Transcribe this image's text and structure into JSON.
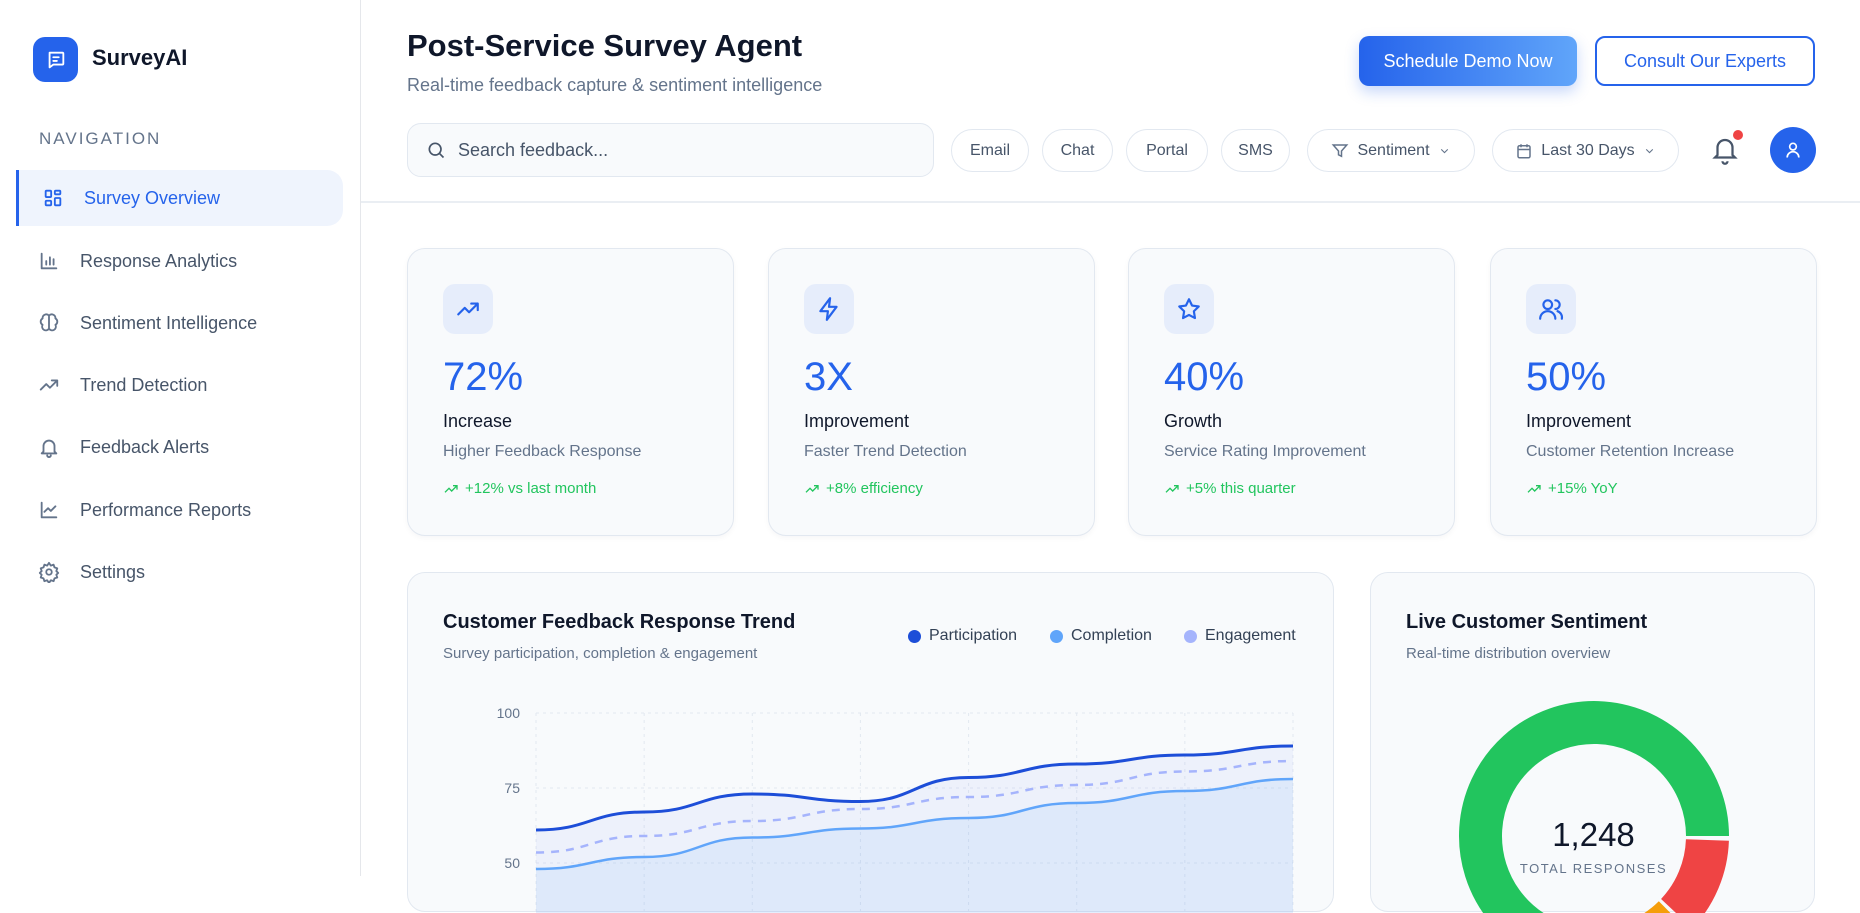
{
  "brand": {
    "name": "SurveyAI"
  },
  "sidebar": {
    "section_label": "NAVIGATION",
    "items": [
      {
        "label": "Survey Overview",
        "icon": "layout-grid-icon",
        "active": true
      },
      {
        "label": "Response Analytics",
        "icon": "bar-chart-icon"
      },
      {
        "label": "Sentiment Intelligence",
        "icon": "brain-icon"
      },
      {
        "label": "Trend Detection",
        "icon": "trending-up-icon"
      },
      {
        "label": "Feedback Alerts",
        "icon": "bell-icon"
      },
      {
        "label": "Performance Reports",
        "icon": "line-chart-icon"
      },
      {
        "label": "Settings",
        "icon": "gear-icon"
      }
    ]
  },
  "header": {
    "title": "Post-Service Survey Agent",
    "subtitle": "Real-time feedback capture & sentiment intelligence",
    "primary_button": "Schedule Demo Now",
    "secondary_button": "Consult Our Experts",
    "search_placeholder": "Search feedback...",
    "channels": [
      "Email",
      "Chat",
      "Portal",
      "SMS"
    ],
    "sentiment_filter": "Sentiment",
    "date_filter": "Last 30 Days",
    "has_notification": true
  },
  "stats": [
    {
      "value": "72%",
      "label": "Increase",
      "sub": "Higher Feedback Response",
      "trend": "+12% vs last month",
      "icon": "trending-up-icon"
    },
    {
      "value": "3X",
      "label": "Improvement",
      "sub": "Faster Trend Detection",
      "trend": "+8% efficiency",
      "icon": "lightning-icon"
    },
    {
      "value": "40%",
      "label": "Growth",
      "sub": "Service Rating Improvement",
      "trend": "+5% this quarter",
      "icon": "star-icon"
    },
    {
      "value": "50%",
      "label": "Improvement",
      "sub": "Customer Retention Increase",
      "trend": "+15% YoY",
      "icon": "users-icon"
    }
  ],
  "colors": {
    "accent": "#2563eb",
    "positive": "#22c55e",
    "negative": "#ef4444"
  },
  "chart_data": [
    {
      "type": "line",
      "title": "Customer Feedback Response Trend",
      "subtitle": "Survey participation, completion & engagement",
      "legend_position": "top-right",
      "grid": true,
      "ylim": [
        50,
        100
      ],
      "yticks": [
        "100",
        "75",
        "50"
      ],
      "series": [
        {
          "name": "Participation",
          "color": "#1d4ed8",
          "values": [
            61,
            67,
            73,
            70.5,
            78.5,
            83,
            86,
            89
          ]
        },
        {
          "name": "Completion",
          "color": "#60a5fa",
          "values": [
            48,
            52,
            58.5,
            61.5,
            65,
            70,
            74,
            78
          ]
        },
        {
          "name": "Engagement",
          "color": "#a5b4fc",
          "dashed": true,
          "values": [
            53.5,
            59,
            64,
            68,
            72,
            76,
            80.5,
            84
          ]
        }
      ]
    },
    {
      "type": "pie",
      "title": "Live Customer Sentiment",
      "subtitle": "Real-time distribution overview",
      "center_value": "1,248",
      "center_label": "TOTAL RESPONSES",
      "segments": [
        {
          "color": "#ef4444",
          "value": 12
        },
        {
          "color": "#f59e0b",
          "value": 14
        },
        {
          "color": "#22c55e",
          "value": 74
        }
      ]
    }
  ]
}
